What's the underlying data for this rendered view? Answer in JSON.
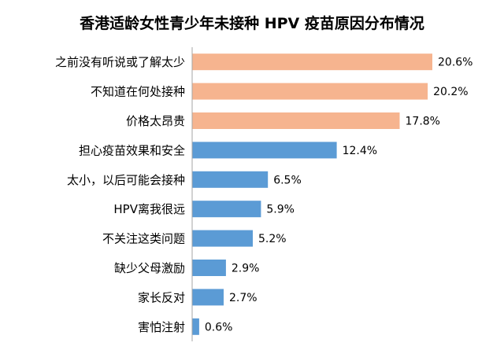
{
  "chart_data": {
    "type": "bar",
    "orientation": "horizontal",
    "title": "香港适龄女性青少年未接种 HPV 疫苗原因分布情况",
    "categories": [
      "之前没有听说或了解太少",
      "不知道在何处接种",
      "价格太昂贵",
      "担心疫苗效果和安全",
      "太小，以后可能会接种",
      "HPV离我很远",
      "不关注这类问题",
      "缺少父母激励",
      "家长反对",
      "害怕注射"
    ],
    "values": [
      20.6,
      20.2,
      17.8,
      12.4,
      6.5,
      5.9,
      5.2,
      2.9,
      2.7,
      0.6
    ],
    "value_labels": [
      "20.6%",
      "20.2%",
      "17.8%",
      "12.4%",
      "6.5%",
      "5.9%",
      "5.2%",
      "2.9%",
      "2.7%",
      "0.6%"
    ],
    "xlim": [
      0,
      20.6
    ],
    "grid": false,
    "legend": "none",
    "colors": {
      "highlight": "#F6B48F",
      "normal": "#5B9BD5",
      "axis": "#A6A6A6",
      "text": "#000000"
    },
    "highlight_count": 3
  }
}
